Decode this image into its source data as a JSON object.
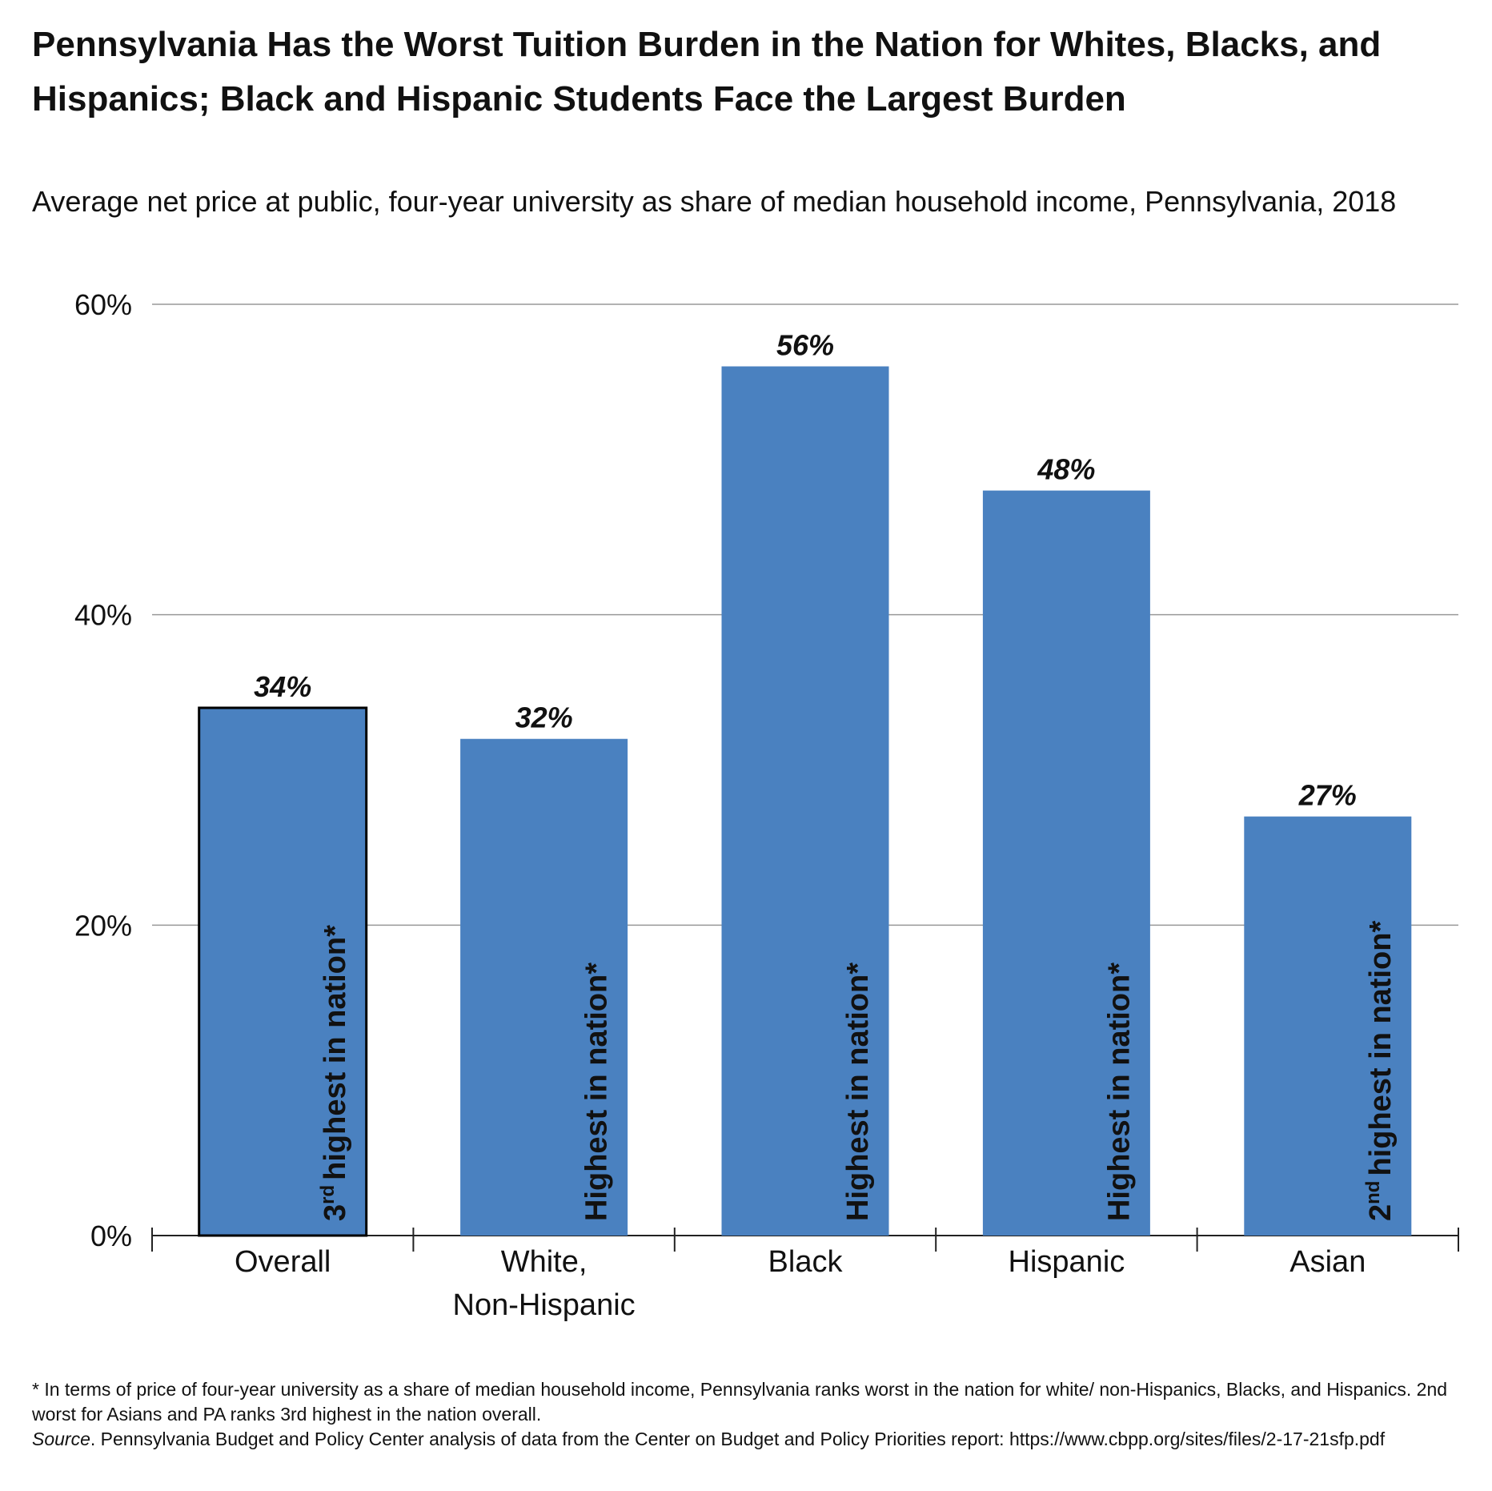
{
  "chart_data": {
    "type": "bar",
    "title": "Pennsylvania Has the Worst Tuition Burden in the Nation for Whites, Blacks, and Hispanics; Black and Hispanic Students Face the Largest Burden",
    "subtitle": "Average net price at public, four-year university as share of median household income, Pennsylvania, 2018",
    "categories": [
      "Overall",
      "White,\nNon-Hispanic",
      "Black",
      "Hispanic",
      "Asian"
    ],
    "values": [
      34,
      32,
      56,
      48,
      27
    ],
    "value_labels": [
      "34%",
      "32%",
      "56%",
      "48%",
      "27%"
    ],
    "color": "#4a81c0",
    "edgecolors": [
      "#000000",
      "none",
      "none",
      "none",
      "none"
    ],
    "annotations": [
      [
        "3",
        "rd",
        "highest in nation*"
      ],
      [
        "Highest in nation*"
      ],
      [
        "Highest in nation*"
      ],
      [
        "Highest in nation*"
      ],
      [
        "2",
        "nd",
        "highest in nation*"
      ]
    ],
    "ylim": [
      0,
      60
    ],
    "yticks": [
      {
        "value": 0,
        "label": "0%"
      },
      {
        "value": 20,
        "label": "20%"
      },
      {
        "value": 40,
        "label": "40%"
      },
      {
        "value": 60,
        "label": "60%"
      }
    ],
    "grid": true,
    "footnote": "* In terms of price of four-year university as a share of median household income, Pennsylvania ranks worst in the nation for white/ non-Hispanics, Blacks, and Hispanics. 2nd worst for Asians and PA ranks 3rd highest in the nation overall.",
    "source_label": "Source",
    "source": ". Pennsylvania Budget and Policy Center analysis of data from the Center on Budget and Policy Priorities report: https://www.cbpp.org/sites/files/2-17-21sfp.pdf"
  }
}
